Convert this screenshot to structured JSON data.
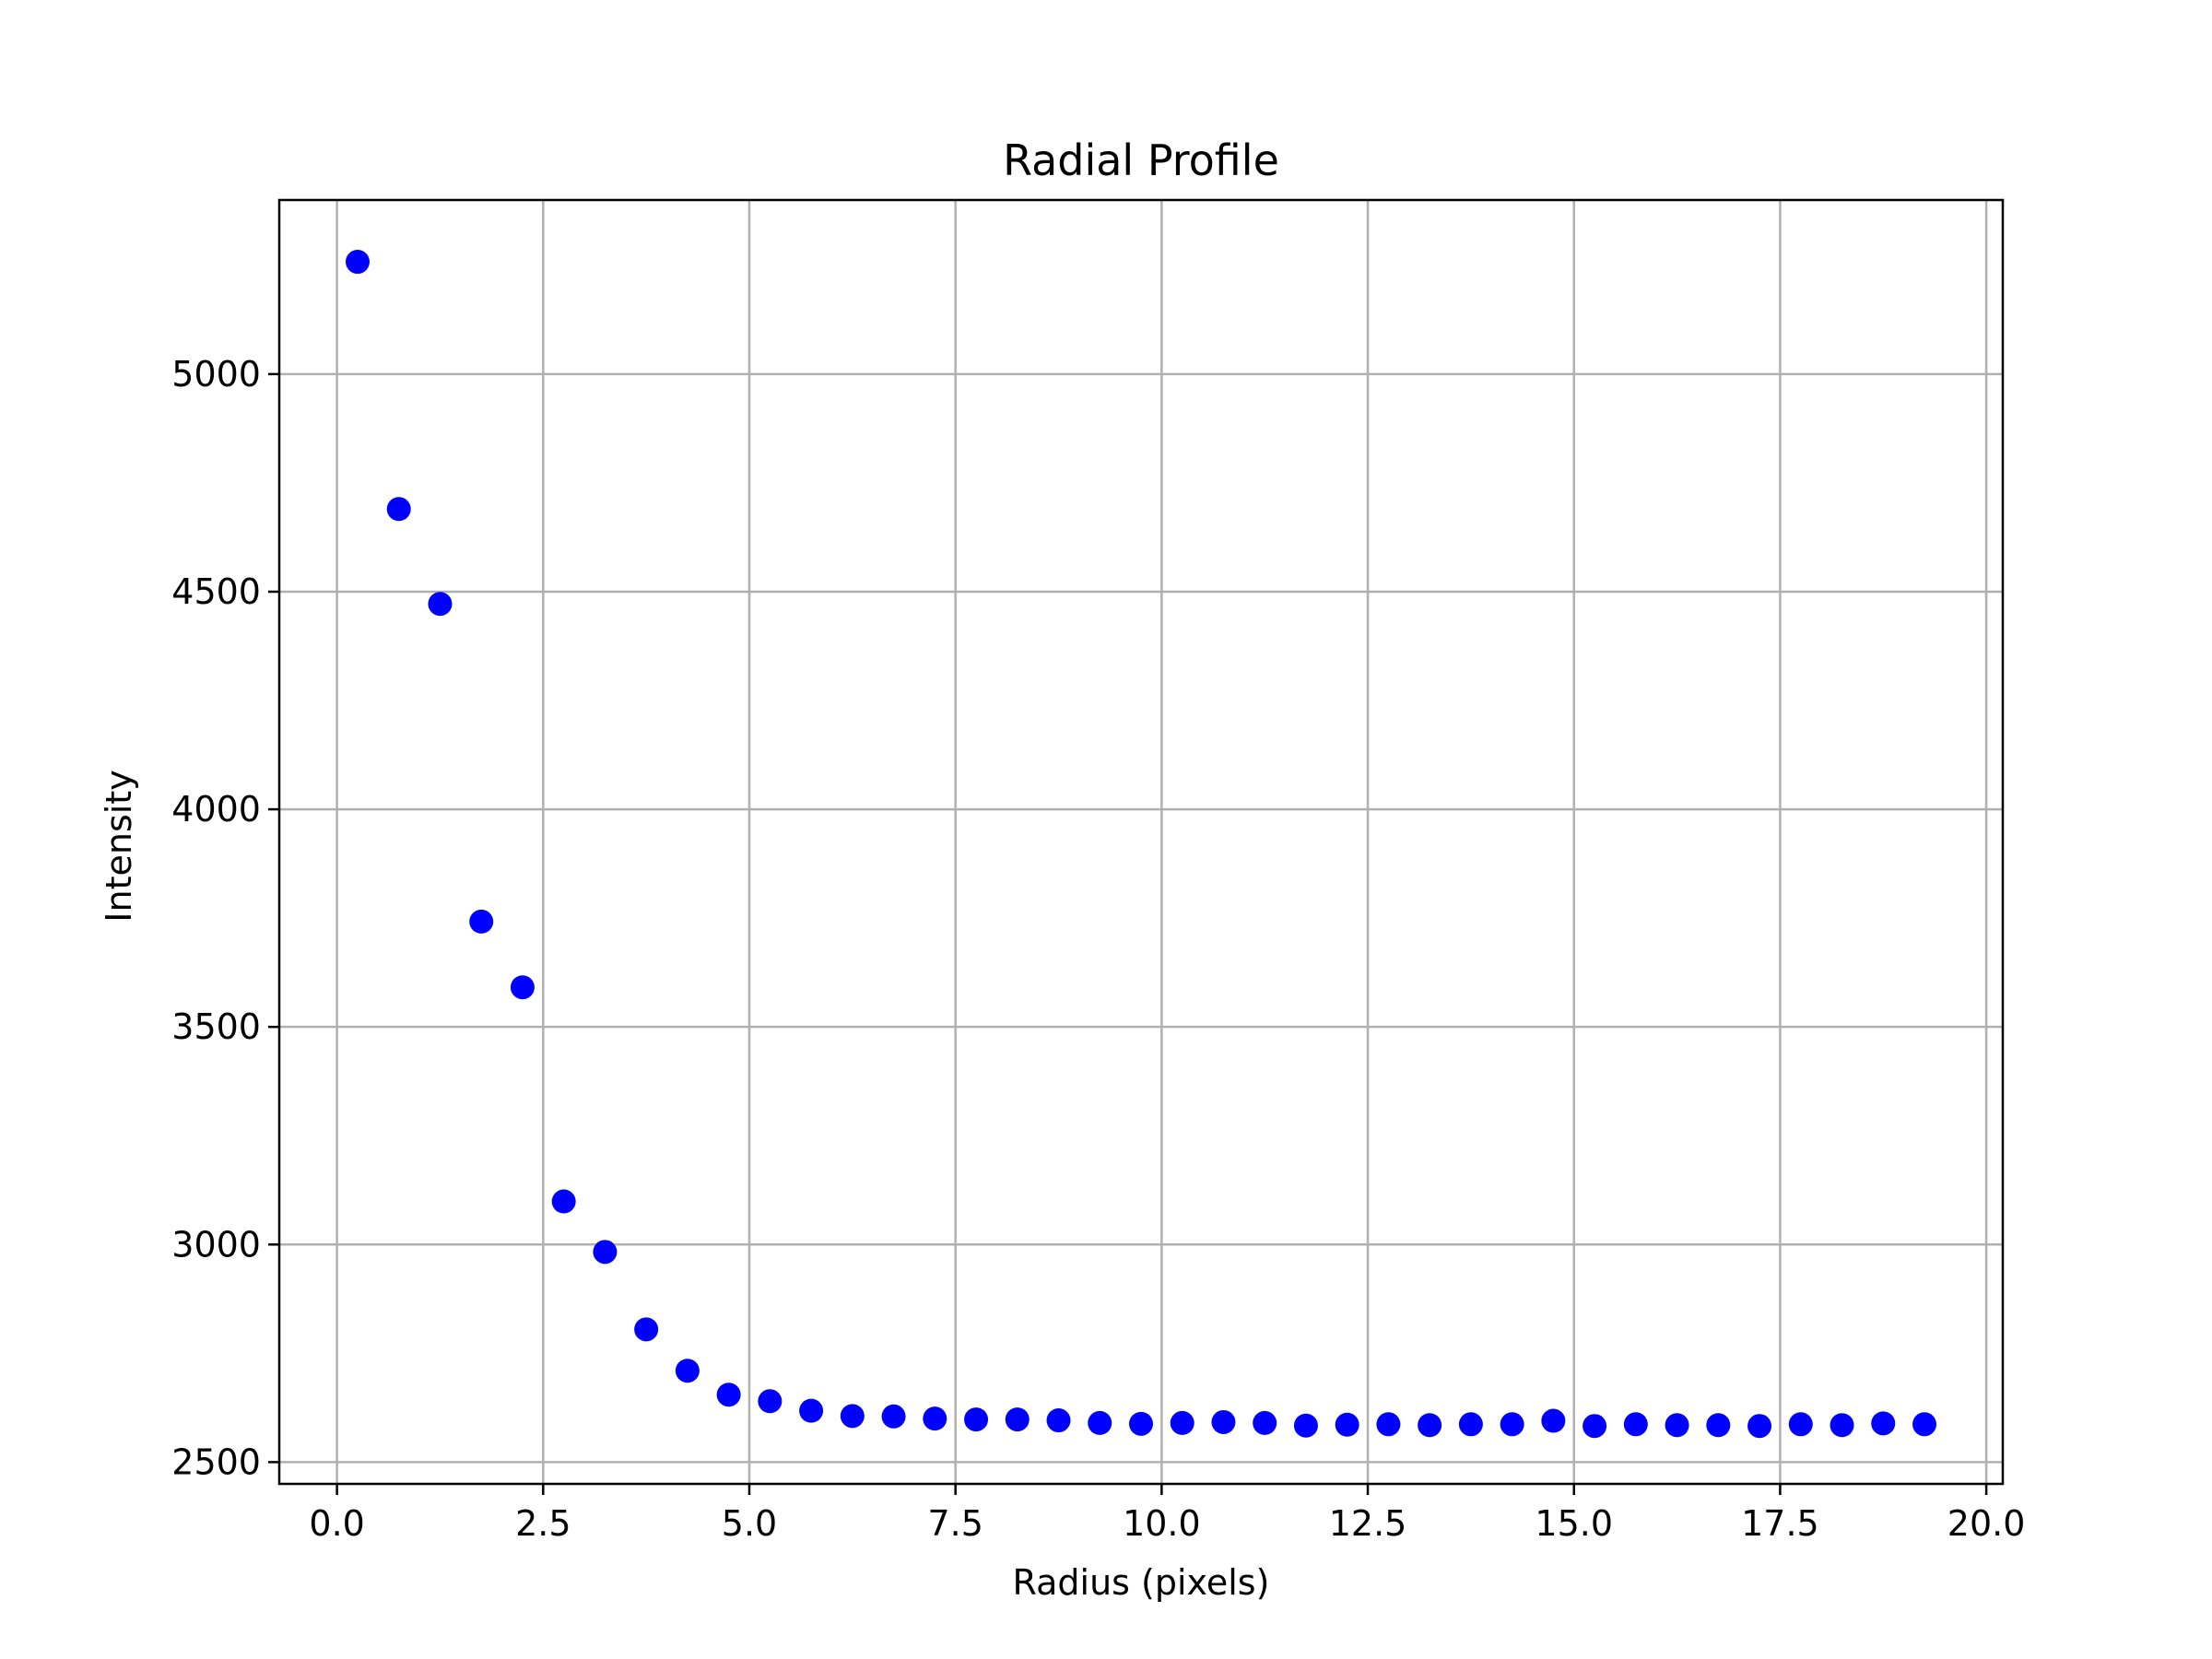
{
  "chart_data": {
    "type": "scatter",
    "title": "Radial Profile",
    "xlabel": "Radius (pixels)",
    "ylabel": "Intensity",
    "xlim": [
      -0.7,
      20.2
    ],
    "ylim": [
      2450,
      5400
    ],
    "grid": true,
    "marker_color": "#0000ff",
    "x_ticks": [
      0.0,
      2.5,
      5.0,
      7.5,
      10.0,
      12.5,
      15.0,
      17.5,
      20.0
    ],
    "x_tick_labels": [
      "0.0",
      "2.5",
      "5.0",
      "7.5",
      "10.0",
      "12.5",
      "15.0",
      "17.5",
      "20.0"
    ],
    "y_ticks": [
      2500,
      3000,
      3500,
      4000,
      4500,
      5000
    ],
    "y_tick_labels": [
      "2500",
      "3000",
      "3500",
      "4000",
      "4500",
      "5000"
    ],
    "series": [
      {
        "name": "Radial Profile",
        "x": [
          0.25,
          0.75,
          1.25,
          1.75,
          2.25,
          2.75,
          3.25,
          3.75,
          4.25,
          4.75,
          5.25,
          5.75,
          6.25,
          6.75,
          7.25,
          7.75,
          8.25,
          8.75,
          9.25,
          9.75,
          10.25,
          10.75,
          11.25,
          11.75,
          12.25,
          12.75,
          13.25,
          13.75,
          14.25,
          14.75,
          15.25,
          15.75,
          16.25,
          16.75,
          17.25,
          17.75,
          18.25,
          18.75,
          19.25
        ],
        "y": [
          5258,
          4690,
          4472,
          3742,
          3591,
          3099,
          2983,
          2805,
          2710,
          2655,
          2640,
          2618,
          2606,
          2605,
          2600,
          2598,
          2598,
          2596,
          2590,
          2588,
          2590,
          2592,
          2590,
          2584,
          2586,
          2587,
          2585,
          2587,
          2587,
          2595,
          2583,
          2587,
          2585,
          2585,
          2583,
          2587,
          2585,
          2589,
          2587
        ]
      }
    ]
  }
}
